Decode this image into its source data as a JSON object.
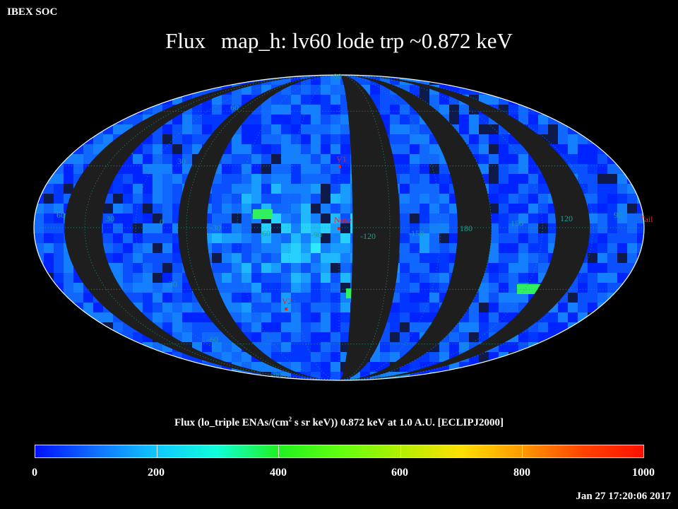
{
  "header": {
    "corner_label": "IBEX SOC",
    "title_part1": "Flux",
    "title_part2": "map_h: lv60 lode trp ~0.872 keV"
  },
  "map": {
    "marker_colors": {
      "label": "#d42a2a",
      "grid": "#1fa090"
    },
    "latitude_labels": [
      "60",
      "30",
      "0",
      "-30",
      "-60",
      "-90",
      "90"
    ],
    "longitude_labels": [
      "60",
      "30",
      "0",
      "-30",
      "-60",
      "-90",
      "-120",
      "-150",
      "180",
      "150",
      "120",
      "90"
    ],
    "markers": {
      "v1": "V1",
      "nose": "Nose",
      "v2": "V2",
      "tail": "Tail"
    }
  },
  "colorbar": {
    "caption_pre": "Flux (lo_triple ENAs/(cm",
    "caption_sup": "2",
    "caption_post": " s sr keV))  0.872 keV at 1.0 A.U. [ECLIPJ2000]",
    "ticks": [
      "0",
      "200",
      "400",
      "600",
      "800",
      "1000"
    ],
    "colors": [
      "#0010ff",
      "#10c8ff",
      "#20f020",
      "#b0f000",
      "#ff9a00",
      "#ff1000"
    ]
  },
  "footer": {
    "timestamp": "Jan 27 17:20:06 2017"
  }
}
